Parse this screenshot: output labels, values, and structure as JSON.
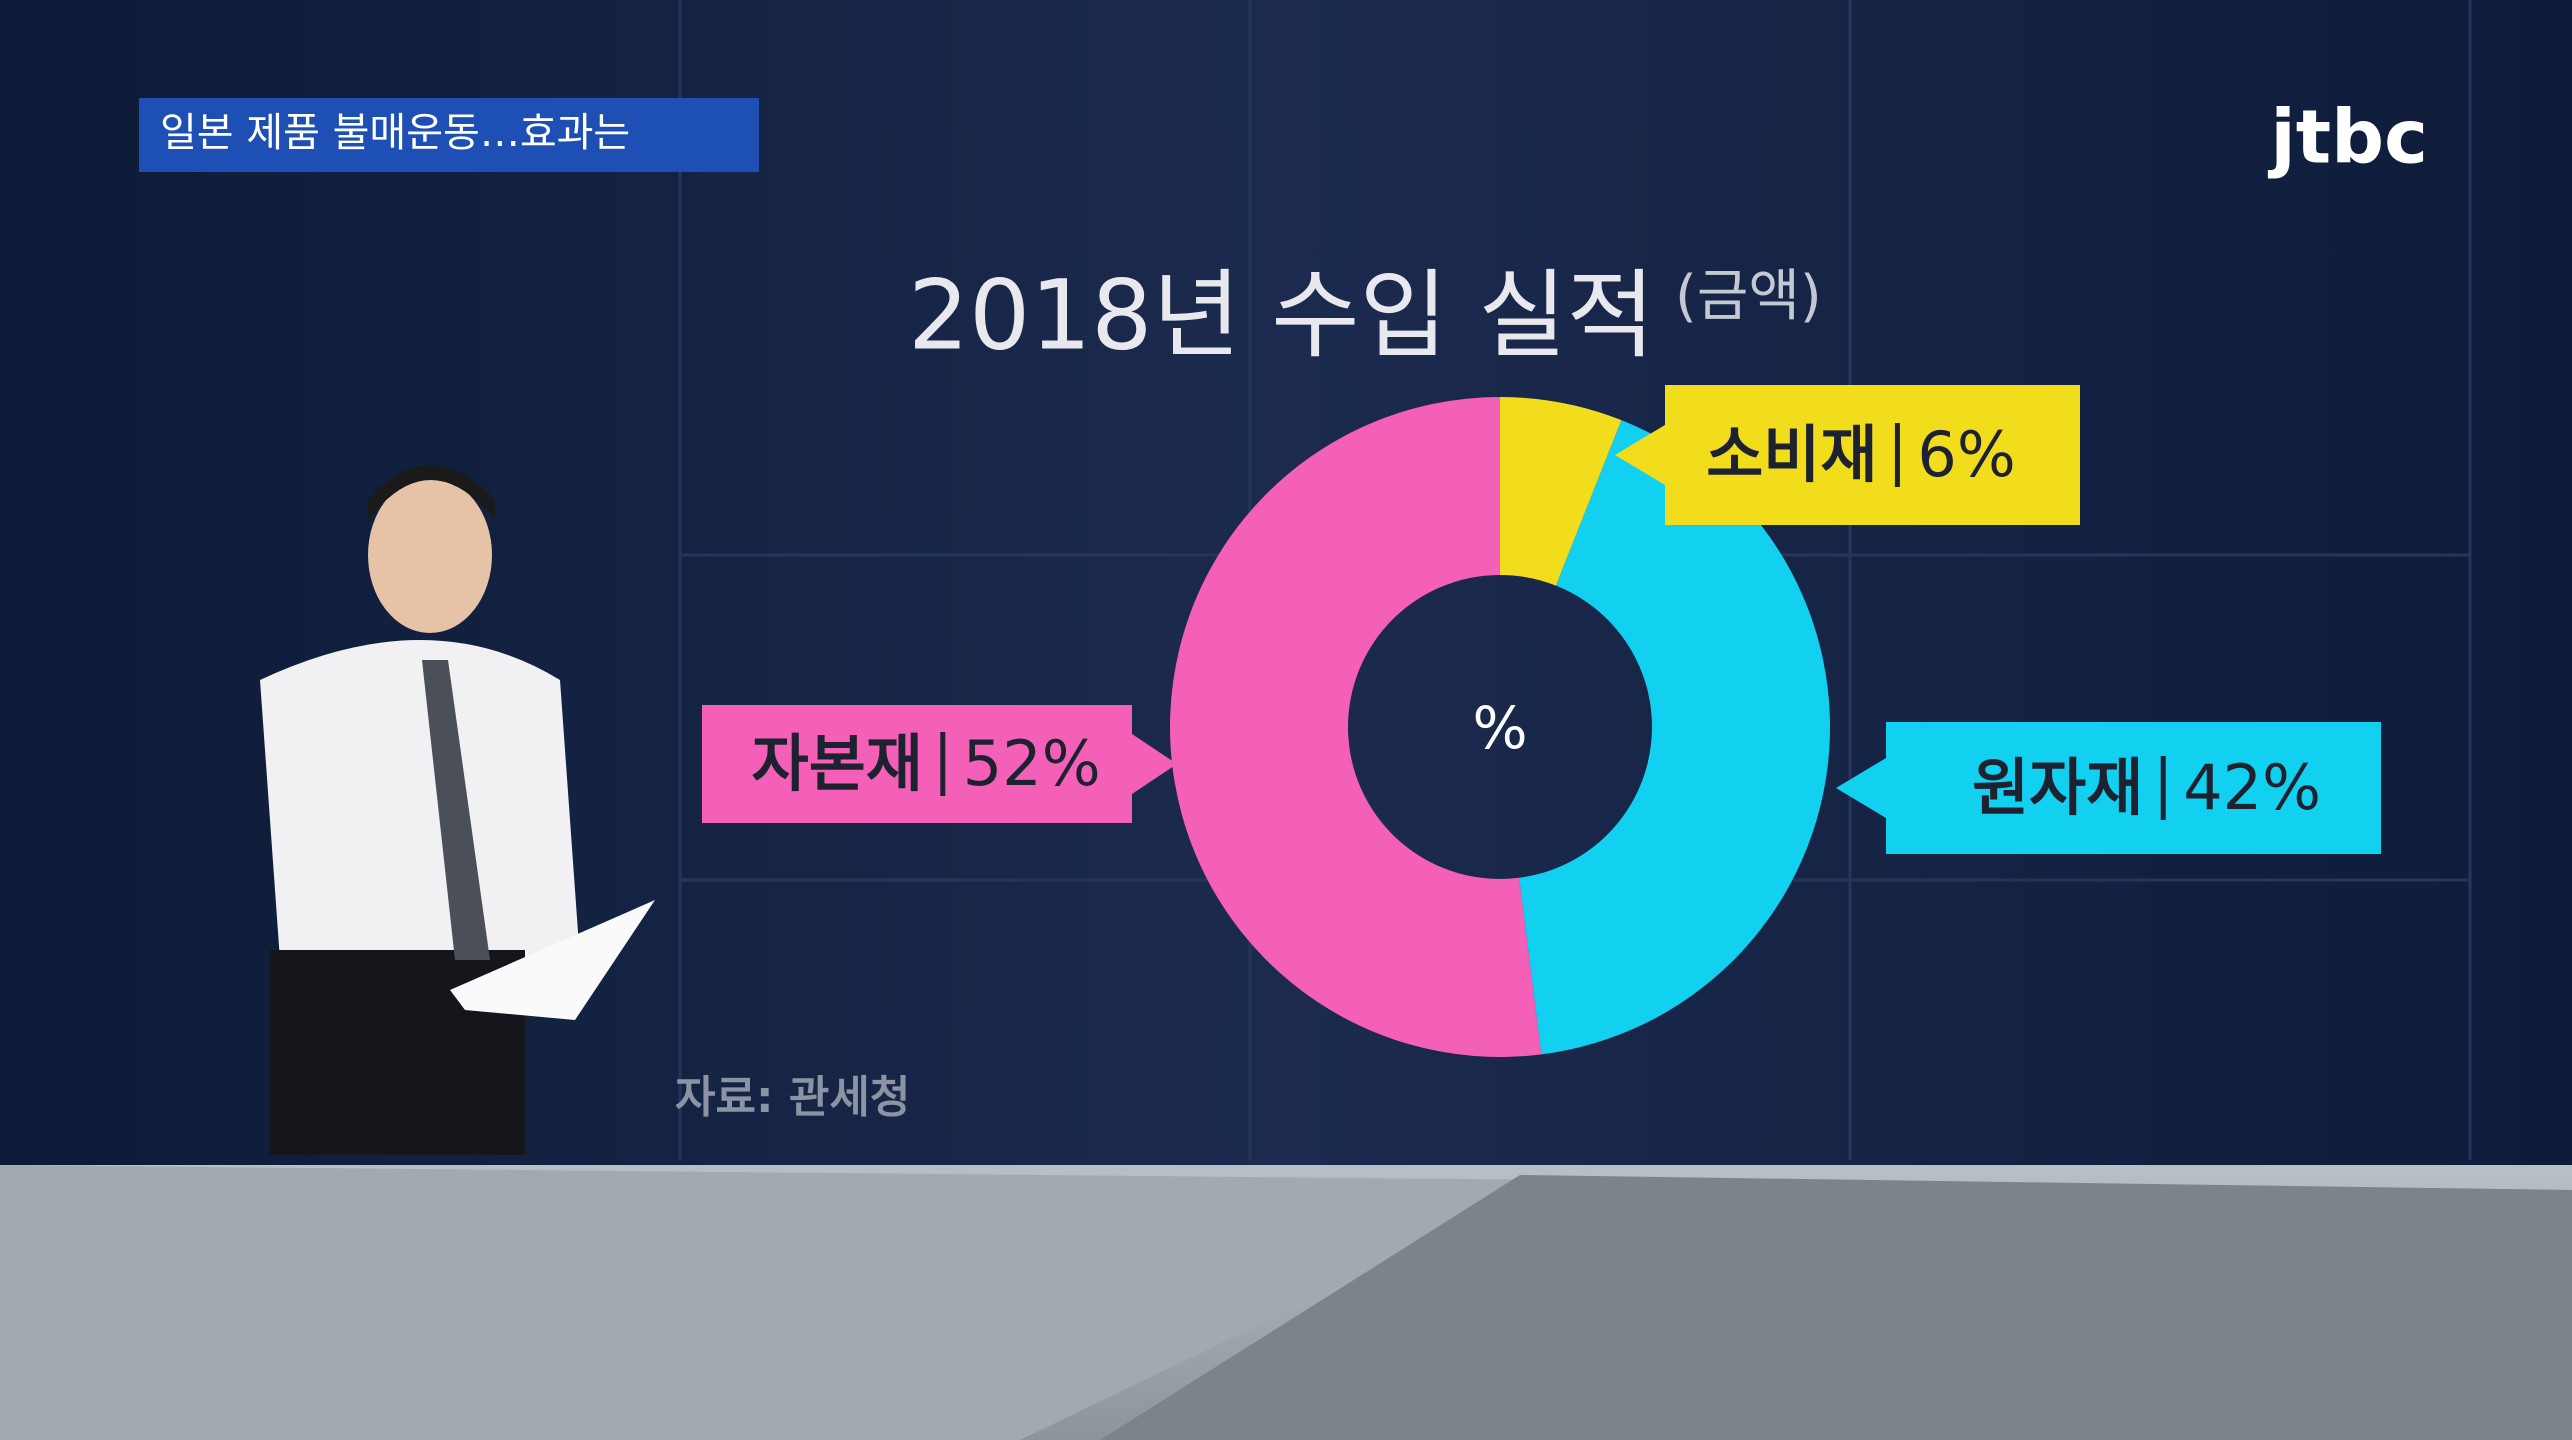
{
  "broadcast": {
    "headline": "일본 제품 불매운동…효과는",
    "logo": "jtbc"
  },
  "chart_data": {
    "type": "pie",
    "donut": true,
    "title": "2018년 수입 실적",
    "subtitle": "(금액)",
    "center_label": "%",
    "source": "자료: 관세청",
    "categories": [
      "소비재",
      "원자재",
      "자본재"
    ],
    "values": [
      6,
      42,
      52
    ],
    "value_labels": [
      "6%",
      "42%",
      "52%"
    ],
    "colors": [
      "#f2dd1c",
      "#12d0f0",
      "#f460b8"
    ]
  }
}
